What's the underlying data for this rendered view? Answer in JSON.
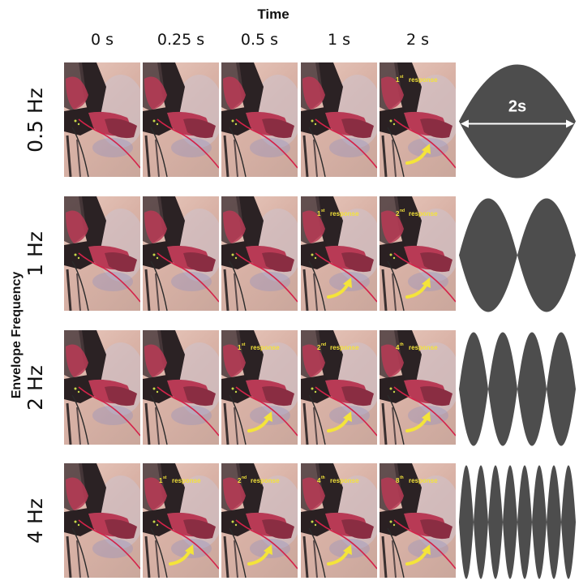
{
  "title": "Time",
  "y_axis_label": "Envelope Frequency",
  "time_columns": [
    "0 s",
    "0.25 s",
    "0.5 s",
    "1 s",
    "2 s"
  ],
  "rows": [
    {
      "label": "0.5 Hz",
      "responses": [
        null,
        null,
        null,
        null,
        {
          "num": "1",
          "sup": "st",
          "word": "response"
        }
      ],
      "lobes": 1,
      "envelope_label": "2s"
    },
    {
      "label": "1 Hz",
      "responses": [
        null,
        null,
        null,
        {
          "num": "1",
          "sup": "st",
          "word": "response"
        },
        {
          "num": "2",
          "sup": "nd",
          "word": "response"
        }
      ],
      "lobes": 2
    },
    {
      "label": "2 Hz",
      "responses": [
        null,
        null,
        {
          "num": "1",
          "sup": "st",
          "word": "response"
        },
        {
          "num": "2",
          "sup": "nd",
          "word": "response"
        },
        {
          "num": "4",
          "sup": "th",
          "word": "response"
        }
      ],
      "lobes": 4
    },
    {
      "label": "4 Hz",
      "responses": [
        null,
        {
          "num": "1",
          "sup": "st",
          "word": "response"
        },
        {
          "num": "2",
          "sup": "nd",
          "word": "response"
        },
        {
          "num": "4",
          "sup": "th",
          "word": "response"
        },
        {
          "num": "8",
          "sup": "th",
          "word": "response"
        }
      ],
      "lobes": 8
    }
  ],
  "colors": {
    "envelope": "#4d4d4d",
    "response_text": "#f4e43a",
    "arrow": "#f4e43a",
    "wire": "#d4234a",
    "feather": "#b83a55"
  }
}
